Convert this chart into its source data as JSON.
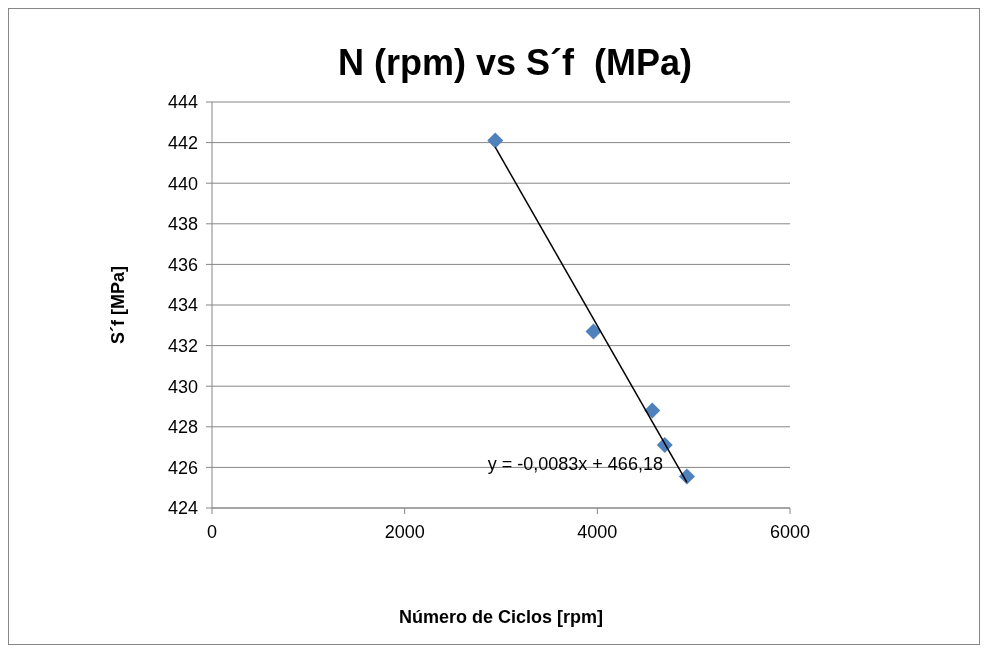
{
  "chart_data": {
    "type": "scatter",
    "title": "N (rpm) vs S´f  (MPa)",
    "xlabel": "Número de Ciclos [rpm]",
    "ylabel": "S´f [MPa]",
    "x": [
      2940,
      3960,
      4570,
      4700,
      4930
    ],
    "series": [
      {
        "color": "#4f81bd",
        "values": [
          442.1,
          432.7,
          428.8,
          427.1,
          425.55
        ],
        "marker": "diamond"
      },
      {
        "type": "line",
        "color": "#000000",
        "x": [
          2940,
          4930
        ],
        "values": [
          441.78,
          425.26
        ],
        "marker": "none",
        "line_style": "solid"
      }
    ],
    "annotations": [
      {
        "text": "y = -0,0083x + 466,18",
        "x": 4930,
        "y": 425.26
      }
    ],
    "xlim": [
      0,
      6000
    ],
    "xticks": [
      0,
      2000,
      4000,
      6000
    ],
    "ylim": [
      424,
      444
    ],
    "yticks": [
      424,
      426,
      428,
      430,
      432,
      434,
      436,
      438,
      440,
      442,
      444
    ],
    "grid": "y"
  }
}
